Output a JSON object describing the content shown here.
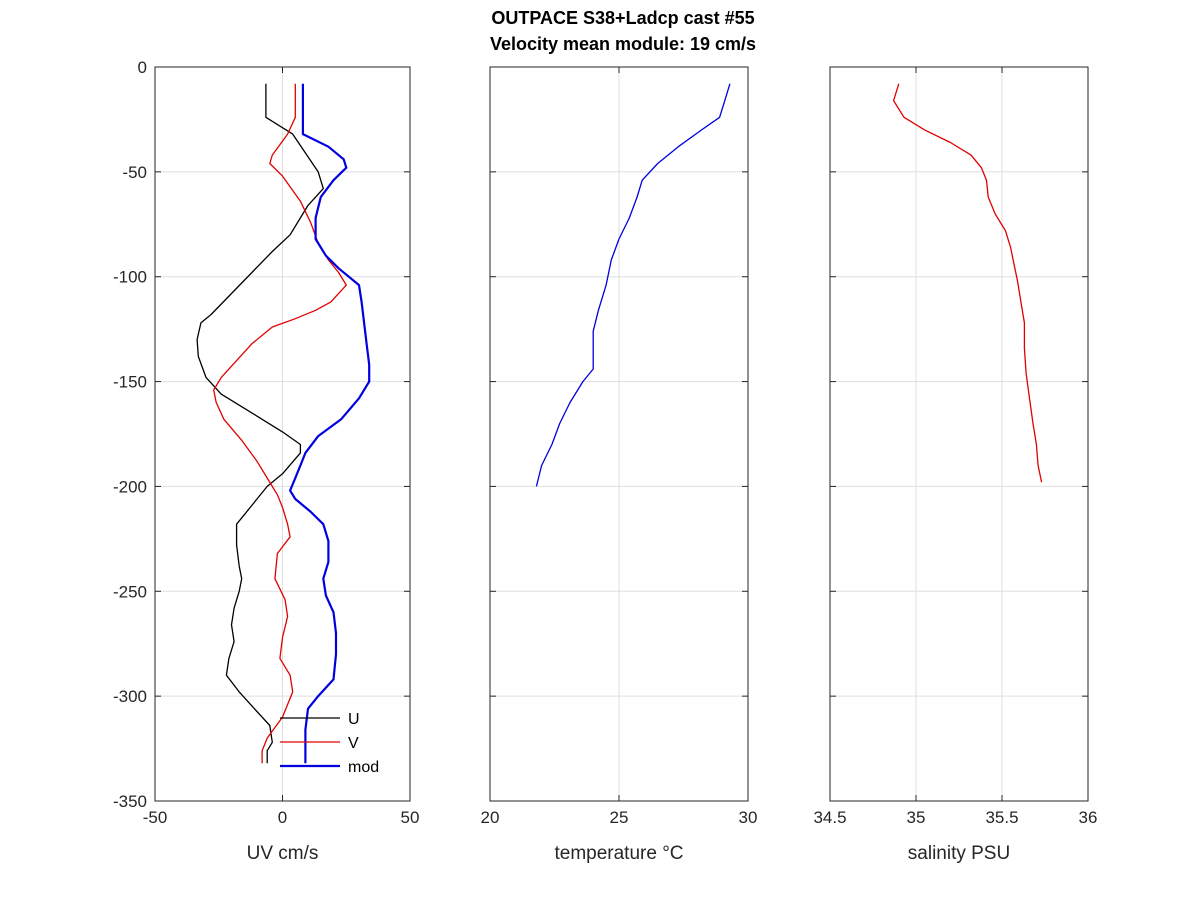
{
  "figure": {
    "title_line1": "OUTPACE S38+Ladcp cast #55",
    "title_line2": "Velocity mean module:  19 cm/s"
  },
  "chart_data": [
    {
      "type": "line",
      "xlabel": "UV cm/s",
      "ylabel": "",
      "xlim": [
        -50,
        50
      ],
      "ylim": [
        -350,
        0
      ],
      "xticks": [
        -50,
        0,
        50
      ],
      "yticks": [
        0,
        -50,
        -100,
        -150,
        -200,
        -250,
        -300,
        -350
      ],
      "grid": true,
      "legend": "bottom-right",
      "series": [
        {
          "name": "U",
          "color": "#000000",
          "points": [
            [
              -6.5,
              -8
            ],
            [
              -6.5,
              -24
            ],
            [
              4,
              -32
            ],
            [
              14,
              -50
            ],
            [
              16,
              -58
            ],
            [
              10,
              -66
            ],
            [
              3,
              -80
            ],
            [
              -4,
              -88
            ],
            [
              -12,
              -98
            ],
            [
              -20,
              -108
            ],
            [
              -28,
              -118
            ],
            [
              -32,
              -122
            ],
            [
              -33.5,
              -130
            ],
            [
              -33,
              -138
            ],
            [
              -30,
              -148
            ],
            [
              -24,
              -156
            ],
            [
              -16,
              -162
            ],
            [
              -8,
              -168
            ],
            [
              0,
              -174
            ],
            [
              7,
              -180
            ],
            [
              7,
              -184
            ],
            [
              0,
              -194
            ],
            [
              -6,
              -200
            ],
            [
              -10,
              -206
            ],
            [
              -14,
              -212
            ],
            [
              -18,
              -218
            ],
            [
              -18,
              -228
            ],
            [
              -17,
              -238
            ],
            [
              -16,
              -244
            ],
            [
              -17,
              -250
            ],
            [
              -19,
              -258
            ],
            [
              -20,
              -266
            ],
            [
              -19,
              -274
            ],
            [
              -21,
              -282
            ],
            [
              -22,
              -290
            ],
            [
              -17,
              -298
            ],
            [
              -11,
              -306
            ],
            [
              -5,
              -314
            ],
            [
              -4,
              -322
            ],
            [
              -6,
              -326
            ],
            [
              -6,
              -332
            ]
          ]
        },
        {
          "name": "V",
          "color": "#e00000",
          "points": [
            [
              5,
              -8
            ],
            [
              5,
              -24
            ],
            [
              2,
              -32
            ],
            [
              -4,
              -42
            ],
            [
              -5,
              -46
            ],
            [
              0,
              -52
            ],
            [
              7,
              -64
            ],
            [
              11,
              -74
            ],
            [
              14,
              -84
            ],
            [
              18,
              -92
            ],
            [
              22,
              -98
            ],
            [
              25,
              -104
            ],
            [
              19,
              -112
            ],
            [
              13,
              -116
            ],
            [
              5,
              -120
            ],
            [
              -4,
              -124
            ],
            [
              -12,
              -132
            ],
            [
              -18,
              -140
            ],
            [
              -24,
              -148
            ],
            [
              -27,
              -154
            ],
            [
              -26,
              -160
            ],
            [
              -23,
              -168
            ],
            [
              -16,
              -178
            ],
            [
              -10,
              -188
            ],
            [
              -6,
              -196
            ],
            [
              -2,
              -204
            ],
            [
              0,
              -210
            ],
            [
              2,
              -218
            ],
            [
              3,
              -224
            ],
            [
              -2,
              -232
            ],
            [
              -3,
              -244
            ],
            [
              1,
              -254
            ],
            [
              2,
              -262
            ],
            [
              0,
              -272
            ],
            [
              -1,
              -282
            ],
            [
              3,
              -290
            ],
            [
              4,
              -298
            ],
            [
              0,
              -310
            ],
            [
              -6,
              -320
            ],
            [
              -8,
              -326
            ],
            [
              -8,
              -332
            ]
          ]
        },
        {
          "name": "mod",
          "color": "#0000e0",
          "points": [
            [
              8,
              -8
            ],
            [
              8,
              -24
            ],
            [
              8,
              -32
            ],
            [
              18,
              -38
            ],
            [
              24,
              -44
            ],
            [
              25,
              -48
            ],
            [
              20,
              -54
            ],
            [
              15,
              -62
            ],
            [
              13,
              -72
            ],
            [
              13,
              -82
            ],
            [
              17,
              -90
            ],
            [
              22,
              -96
            ],
            [
              26,
              -100
            ],
            [
              30,
              -104
            ],
            [
              31,
              -112
            ],
            [
              32,
              -122
            ],
            [
              33,
              -132
            ],
            [
              34,
              -142
            ],
            [
              34,
              -150
            ],
            [
              30,
              -158
            ],
            [
              23,
              -168
            ],
            [
              14,
              -176
            ],
            [
              9,
              -184
            ],
            [
              7,
              -190
            ],
            [
              5,
              -196
            ],
            [
              3,
              -202
            ],
            [
              5,
              -206
            ],
            [
              11,
              -212
            ],
            [
              16,
              -218
            ],
            [
              18,
              -226
            ],
            [
              18,
              -236
            ],
            [
              16,
              -244
            ],
            [
              17,
              -252
            ],
            [
              20,
              -260
            ],
            [
              21,
              -270
            ],
            [
              21,
              -280
            ],
            [
              20,
              -292
            ],
            [
              14,
              -300
            ],
            [
              10,
              -306
            ],
            [
              9,
              -316
            ],
            [
              9,
              -332
            ]
          ]
        }
      ]
    },
    {
      "type": "line",
      "xlabel": "temperature °C",
      "ylabel": "",
      "xlim": [
        20,
        30
      ],
      "ylim": [
        -350,
        0
      ],
      "xticks": [
        20,
        25,
        30
      ],
      "yticks": [
        0,
        -50,
        -100,
        -150,
        -200,
        -250,
        -300,
        -350
      ],
      "grid": true,
      "series": [
        {
          "name": "",
          "color": "#0000e0",
          "points": [
            [
              29.3,
              -8
            ],
            [
              29.1,
              -16
            ],
            [
              28.9,
              -24
            ],
            [
              28.2,
              -30
            ],
            [
              27.3,
              -38
            ],
            [
              26.5,
              -46
            ],
            [
              25.9,
              -54
            ],
            [
              25.7,
              -62
            ],
            [
              25.4,
              -72
            ],
            [
              25.0,
              -82
            ],
            [
              24.7,
              -92
            ],
            [
              24.5,
              -104
            ],
            [
              24.2,
              -116
            ],
            [
              24.0,
              -126
            ],
            [
              24.0,
              -134
            ],
            [
              24.0,
              -144
            ],
            [
              23.6,
              -150
            ],
            [
              23.1,
              -160
            ],
            [
              22.7,
              -170
            ],
            [
              22.4,
              -180
            ],
            [
              22.0,
              -190
            ],
            [
              21.8,
              -200
            ]
          ]
        }
      ]
    },
    {
      "type": "line",
      "xlabel": "salinity PSU",
      "ylabel": "",
      "xlim": [
        34.5,
        36
      ],
      "ylim": [
        -350,
        0
      ],
      "xticks": [
        34.5,
        35,
        35.5,
        36
      ],
      "xticklabels": [
        "34.5",
        "35",
        "35.5",
        "36"
      ],
      "yticks": [
        0,
        -50,
        -100,
        -150,
        -200,
        -250,
        -300,
        -350
      ],
      "grid": true,
      "series": [
        {
          "name": "",
          "color": "#e00000",
          "points": [
            [
              34.9,
              -8
            ],
            [
              34.87,
              -16
            ],
            [
              34.93,
              -24
            ],
            [
              35.05,
              -30
            ],
            [
              35.2,
              -36
            ],
            [
              35.32,
              -42
            ],
            [
              35.38,
              -48
            ],
            [
              35.41,
              -54
            ],
            [
              35.42,
              -62
            ],
            [
              35.46,
              -70
            ],
            [
              35.52,
              -78
            ],
            [
              35.55,
              -86
            ],
            [
              35.57,
              -94
            ],
            [
              35.59,
              -102
            ],
            [
              35.61,
              -112
            ],
            [
              35.63,
              -122
            ],
            [
              35.63,
              -134
            ],
            [
              35.64,
              -146
            ],
            [
              35.66,
              -158
            ],
            [
              35.68,
              -170
            ],
            [
              35.7,
              -180
            ],
            [
              35.71,
              -190
            ],
            [
              35.73,
              -198
            ]
          ]
        }
      ]
    }
  ]
}
